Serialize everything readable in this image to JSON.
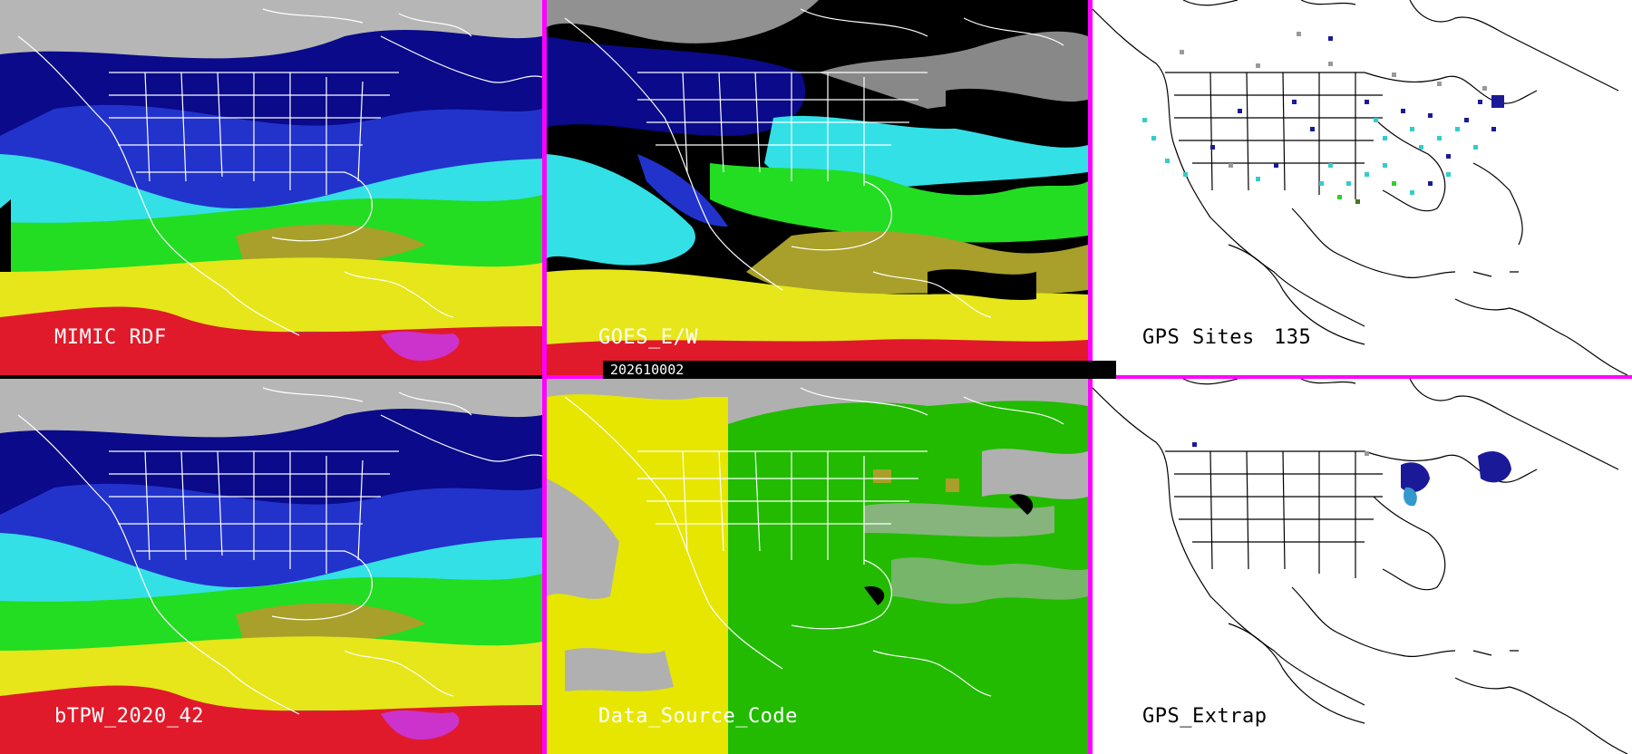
{
  "colors": {
    "divider": "#ff00ff",
    "map_lines_dark": "#ffffff",
    "map_lines_light": "#000000",
    "tpw_low": "#0a0a8a",
    "tpw_mid_blue": "#2233cc",
    "tpw_cyan": "#33e0e6",
    "tpw_green": "#22dd22",
    "tpw_yellow": "#e6e61a",
    "tpw_olive": "#a8a02a",
    "tpw_red": "#e01a2a",
    "tpw_magenta": "#cc33cc",
    "dsc_gray": "#b0b0b0",
    "dsc_yellow": "#e6e600",
    "dsc_green": "#22bb00"
  },
  "panels": {
    "mimic": {
      "label": "MIMIC RDF"
    },
    "goes": {
      "label": "GOES_E/W",
      "timestamp": "202610002"
    },
    "gps_sites": {
      "label": "GPS Sites",
      "count": "135"
    },
    "btpw": {
      "label": "bTPW_2020_42"
    },
    "dsc": {
      "label": "Data_Source_Code"
    },
    "gps_extrap": {
      "label": "GPS_Extrap"
    }
  }
}
